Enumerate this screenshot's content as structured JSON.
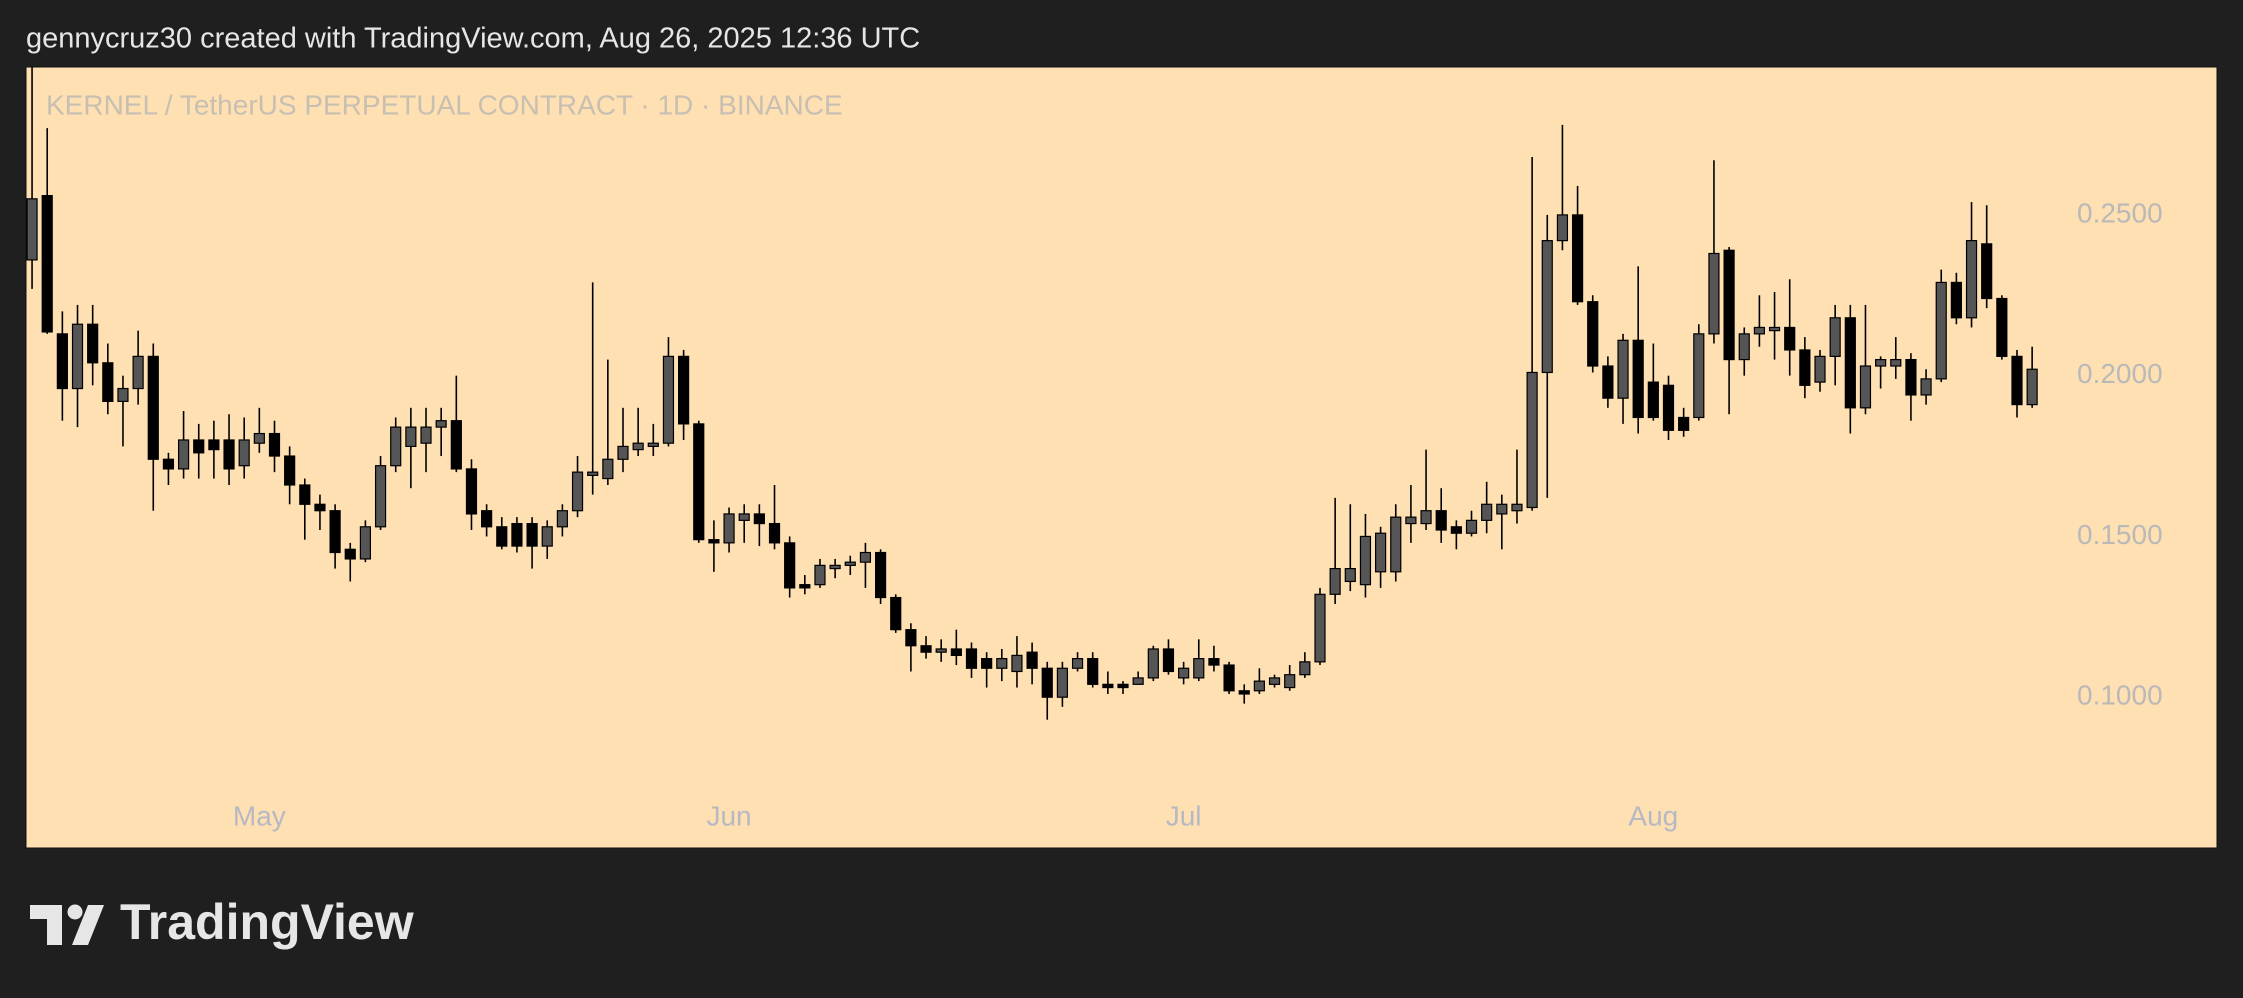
{
  "header": "gennycruz30 created with TradingView.com, Aug 26, 2025 12:36 UTC",
  "logo": "TradingView",
  "chart_data": {
    "type": "candlestick",
    "title": "KERNEL / TetherUS PERPETUAL CONTRACT · 1D · BINANCE",
    "up_color": "#555555",
    "down_color": "#000000",
    "background": "#ffe0b2",
    "grid": false,
    "xlim": [
      -0.4,
      144.2
    ],
    "xticks": [
      {
        "value": 15,
        "label": "May"
      },
      {
        "value": 46,
        "label": "Jun"
      },
      {
        "value": 76,
        "label": "Jul"
      },
      {
        "value": 107,
        "label": "Aug"
      }
    ],
    "ylim": [
      0.0531,
      0.296
    ],
    "yticks": [
      {
        "value": 0.1,
        "label": "0.1000"
      },
      {
        "value": 0.15,
        "label": "0.1500"
      },
      {
        "value": 0.2,
        "label": "0.2000"
      },
      {
        "value": 0.25,
        "label": "0.2500"
      }
    ],
    "open": [
      0.236,
      0.256,
      0.213,
      0.196,
      0.216,
      0.204,
      0.192,
      0.196,
      0.206,
      0.174,
      0.171,
      0.18,
      0.18,
      0.18,
      0.172,
      0.179,
      0.182,
      0.175,
      0.166,
      0.16,
      0.158,
      0.146,
      0.143,
      0.153,
      0.172,
      0.178,
      0.179,
      0.184,
      0.186,
      0.171,
      0.158,
      0.153,
      0.154,
      0.154,
      0.147,
      0.153,
      0.158,
      0.169,
      0.168,
      0.174,
      0.177,
      0.178,
      0.179,
      0.206,
      0.185,
      0.149,
      0.148,
      0.155,
      0.157,
      0.154,
      0.148,
      0.135,
      0.135,
      0.14,
      0.141,
      0.142,
      0.145,
      0.131,
      0.121,
      0.116,
      0.114,
      0.115,
      0.115,
      0.112,
      0.109,
      0.108,
      0.114,
      0.109,
      0.1,
      0.109,
      0.112,
      0.104,
      0.104,
      0.104,
      0.106,
      0.115,
      0.106,
      0.106,
      0.112,
      0.11,
      0.102,
      0.102,
      0.104,
      0.103,
      0.107,
      0.111,
      0.132,
      0.136,
      0.135,
      0.139,
      0.139,
      0.154,
      0.154,
      0.158,
      0.153,
      0.151,
      0.155,
      0.157,
      0.158,
      0.159,
      0.201,
      0.242,
      0.25,
      0.223,
      0.203,
      0.193,
      0.211,
      0.198,
      0.197,
      0.187,
      0.187,
      0.213,
      0.239,
      0.205,
      0.213,
      0.214,
      0.215,
      0.208,
      0.198,
      0.206,
      0.218,
      0.19,
      0.203,
      0.203,
      0.205,
      0.194,
      0.199,
      0.229,
      0.218,
      0.241,
      0.224,
      0.206,
      0.191
    ],
    "high": [
      0.296,
      0.277,
      0.22,
      0.222,
      0.222,
      0.21,
      0.2,
      0.214,
      0.21,
      0.176,
      0.189,
      0.185,
      0.186,
      0.188,
      0.187,
      0.19,
      0.186,
      0.178,
      0.168,
      0.163,
      0.16,
      0.148,
      0.155,
      0.175,
      0.187,
      0.19,
      0.19,
      0.19,
      0.2,
      0.174,
      0.16,
      0.156,
      0.156,
      0.156,
      0.155,
      0.16,
      0.175,
      0.229,
      0.205,
      0.19,
      0.19,
      0.185,
      0.212,
      0.208,
      0.186,
      0.155,
      0.159,
      0.16,
      0.16,
      0.166,
      0.15,
      0.138,
      0.143,
      0.143,
      0.144,
      0.148,
      0.146,
      0.132,
      0.123,
      0.119,
      0.118,
      0.121,
      0.117,
      0.114,
      0.115,
      0.119,
      0.117,
      0.111,
      0.111,
      0.114,
      0.114,
      0.108,
      0.105,
      0.108,
      0.116,
      0.118,
      0.111,
      0.118,
      0.116,
      0.111,
      0.104,
      0.109,
      0.107,
      0.11,
      0.114,
      0.134,
      0.162,
      0.16,
      0.157,
      0.153,
      0.16,
      0.166,
      0.177,
      0.165,
      0.155,
      0.158,
      0.167,
      0.163,
      0.177,
      0.268,
      0.25,
      0.278,
      0.259,
      0.225,
      0.206,
      0.213,
      0.234,
      0.21,
      0.2,
      0.19,
      0.216,
      0.267,
      0.24,
      0.215,
      0.225,
      0.226,
      0.23,
      0.212,
      0.208,
      0.222,
      0.222,
      0.222,
      0.206,
      0.212,
      0.207,
      0.202,
      0.233,
      0.232,
      0.254,
      0.253,
      0.225,
      0.208,
      0.209
    ],
    "low": [
      0.227,
      0.213,
      0.186,
      0.184,
      0.197,
      0.188,
      0.178,
      0.191,
      0.158,
      0.166,
      0.168,
      0.168,
      0.168,
      0.166,
      0.168,
      0.176,
      0.17,
      0.16,
      0.149,
      0.152,
      0.14,
      0.136,
      0.142,
      0.152,
      0.17,
      0.165,
      0.17,
      0.175,
      0.17,
      0.152,
      0.15,
      0.146,
      0.145,
      0.14,
      0.143,
      0.15,
      0.156,
      0.163,
      0.166,
      0.17,
      0.175,
      0.175,
      0.178,
      0.18,
      0.148,
      0.139,
      0.145,
      0.148,
      0.147,
      0.146,
      0.131,
      0.132,
      0.134,
      0.137,
      0.138,
      0.134,
      0.129,
      0.12,
      0.108,
      0.112,
      0.111,
      0.11,
      0.106,
      0.103,
      0.105,
      0.103,
      0.104,
      0.093,
      0.097,
      0.108,
      0.103,
      0.101,
      0.101,
      0.104,
      0.105,
      0.107,
      0.104,
      0.105,
      0.108,
      0.101,
      0.098,
      0.101,
      0.103,
      0.102,
      0.106,
      0.11,
      0.129,
      0.133,
      0.131,
      0.134,
      0.136,
      0.148,
      0.152,
      0.148,
      0.146,
      0.15,
      0.151,
      0.146,
      0.154,
      0.158,
      0.162,
      0.239,
      0.222,
      0.201,
      0.19,
      0.185,
      0.182,
      0.186,
      0.18,
      0.181,
      0.186,
      0.21,
      0.188,
      0.2,
      0.209,
      0.205,
      0.2,
      0.193,
      0.195,
      0.197,
      0.182,
      0.188,
      0.196,
      0.199,
      0.186,
      0.191,
      0.198,
      0.216,
      0.215,
      0.221,
      0.205,
      0.187,
      0.19
    ],
    "close": [
      0.255,
      0.2136,
      0.196,
      0.216,
      0.204,
      0.192,
      0.196,
      0.206,
      0.174,
      0.171,
      0.18,
      0.176,
      0.177,
      0.171,
      0.18,
      0.182,
      0.175,
      0.166,
      0.16,
      0.158,
      0.145,
      0.143,
      0.153,
      0.172,
      0.184,
      0.184,
      0.184,
      0.186,
      0.171,
      0.157,
      0.153,
      0.147,
      0.147,
      0.147,
      0.153,
      0.158,
      0.17,
      0.17,
      0.174,
      0.178,
      0.179,
      0.179,
      0.206,
      0.185,
      0.149,
      0.148,
      0.157,
      0.157,
      0.154,
      0.148,
      0.134,
      0.134,
      0.141,
      0.141,
      0.142,
      0.145,
      0.131,
      0.121,
      0.116,
      0.114,
      0.115,
      0.113,
      0.109,
      0.109,
      0.112,
      0.113,
      0.109,
      0.1,
      0.109,
      0.112,
      0.104,
      0.103,
      0.103,
      0.106,
      0.115,
      0.108,
      0.109,
      0.112,
      0.11,
      0.102,
      0.101,
      0.105,
      0.106,
      0.107,
      0.111,
      0.132,
      0.14,
      0.14,
      0.15,
      0.151,
      0.156,
      0.156,
      0.158,
      0.152,
      0.151,
      0.155,
      0.16,
      0.16,
      0.16,
      0.201,
      0.242,
      0.25,
      0.223,
      0.203,
      0.193,
      0.211,
      0.187,
      0.187,
      0.183,
      0.183,
      0.213,
      0.238,
      0.205,
      0.213,
      0.215,
      0.215,
      0.208,
      0.197,
      0.206,
      0.218,
      0.19,
      0.203,
      0.205,
      0.205,
      0.194,
      0.199,
      0.229,
      0.218,
      0.242,
      0.224,
      0.206,
      0.191,
      0.202
    ]
  }
}
